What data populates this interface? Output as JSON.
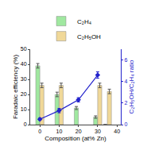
{
  "chart_data": {
    "type": "bar",
    "xlabel": "Composition (at% Zn)",
    "ylabel": "Faradaic efficiency (%)",
    "y2label": "C₂H₅OH/C₂H₄ ratio",
    "xlim": [
      -5,
      42
    ],
    "xticks": [
      0,
      10,
      20,
      30,
      40
    ],
    "ylim": [
      0,
      50
    ],
    "yticks": [
      0,
      10,
      20,
      30,
      40,
      50
    ],
    "y2lim": [
      0,
      7
    ],
    "y2ticks": [
      0,
      2,
      4,
      6
    ],
    "grid": false,
    "legend": "top",
    "series": [
      {
        "name": "C₂H₄",
        "color": "#a0e8a0",
        "x": [
          0,
          10,
          20,
          30,
          35
        ],
        "values": [
          39,
          20,
          11,
          5,
          0
        ],
        "errors": [
          1.5,
          1.5,
          1.0,
          0.8,
          0
        ]
      },
      {
        "name": "C₂H₅OH",
        "color": "#f0d898",
        "x": [
          0,
          10,
          30,
          35
        ],
        "values": [
          26,
          26,
          26,
          22
        ],
        "errors": [
          1.5,
          1.5,
          1.5,
          1.5
        ]
      },
      {
        "type": "line",
        "axis": "y2",
        "color": "#2222cc",
        "marker": "diamond",
        "x": [
          0,
          10,
          20,
          30
        ],
        "values": [
          0.5,
          1.3,
          2.3,
          4.6
        ],
        "errors": [
          0.1,
          0.2,
          0.2,
          0.3
        ]
      }
    ]
  }
}
